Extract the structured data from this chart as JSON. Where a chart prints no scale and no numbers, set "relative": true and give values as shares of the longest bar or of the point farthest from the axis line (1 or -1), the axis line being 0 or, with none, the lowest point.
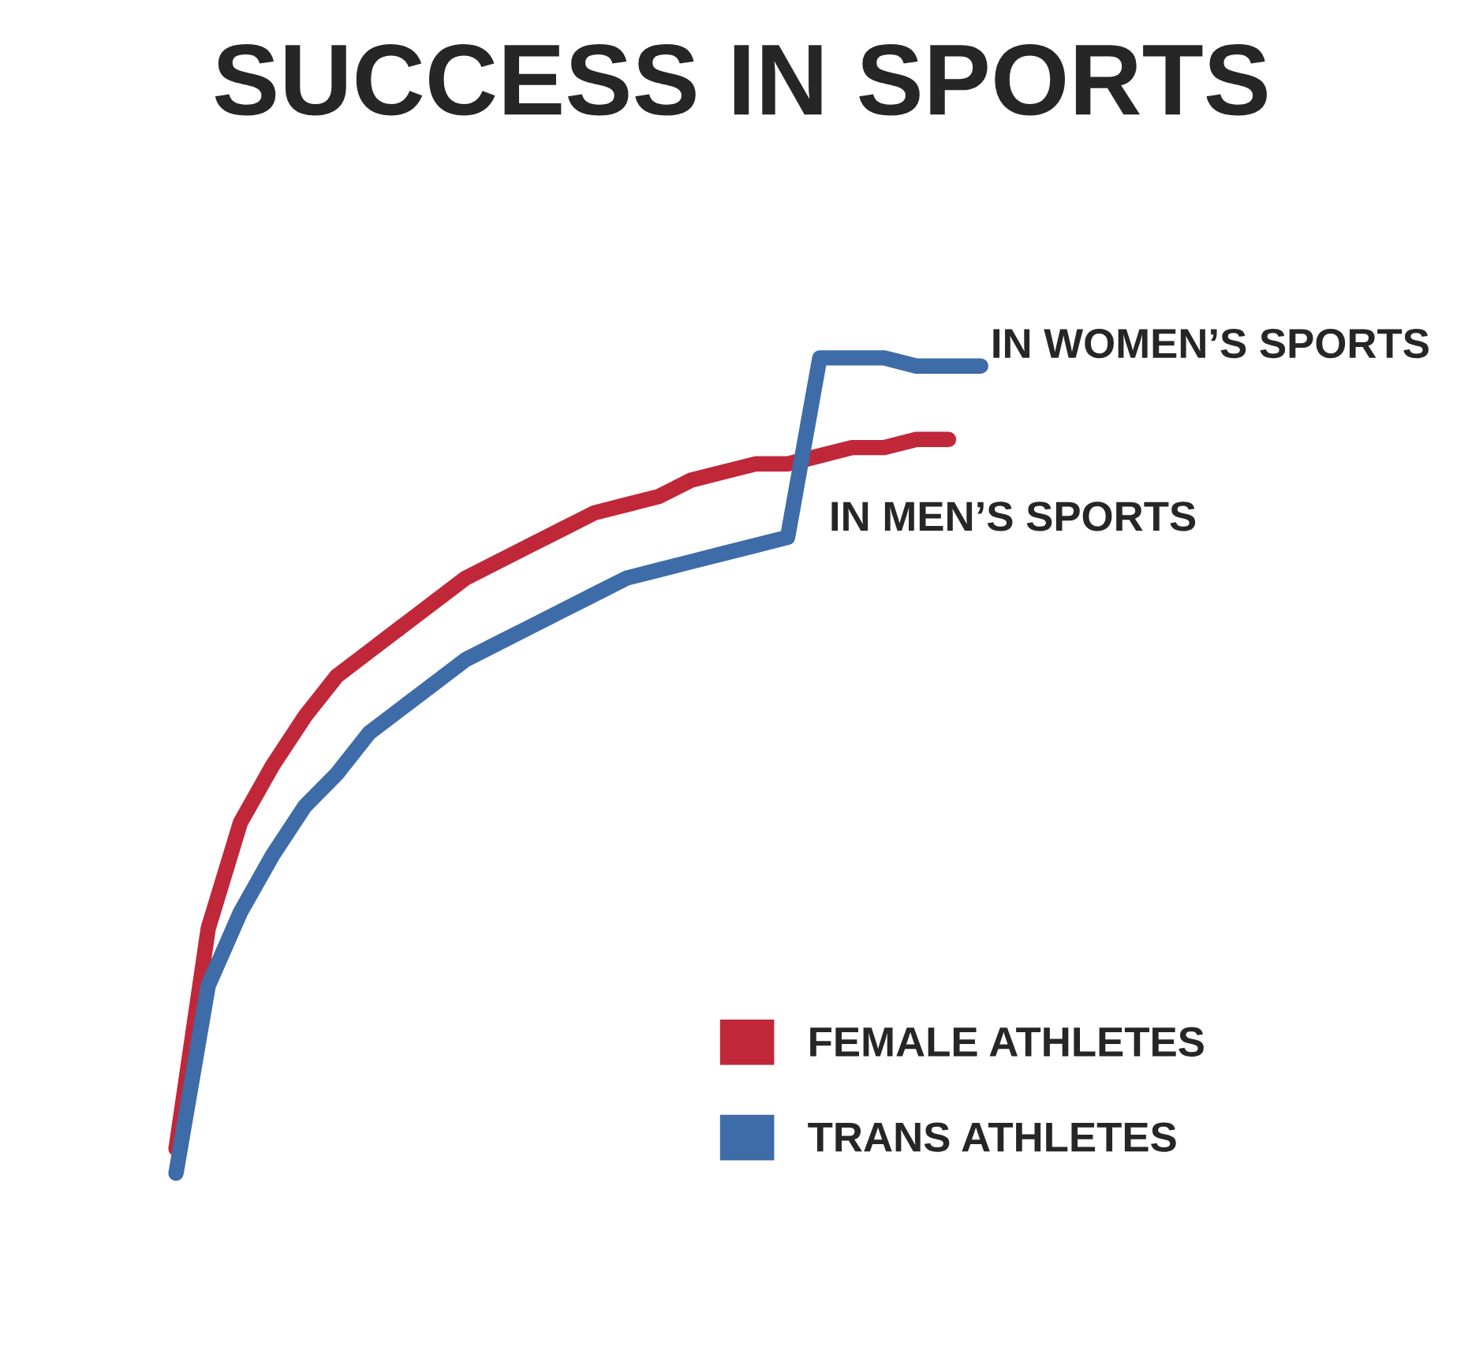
{
  "chart_data": {
    "type": "line",
    "title": "SUCCESS IN SPORTS",
    "relative": true,
    "legend": "bottom right",
    "marker": "none",
    "line_style": "solid",
    "categories": [
      null,
      null,
      null,
      null,
      null,
      null,
      null,
      null,
      null,
      null,
      null,
      null,
      null,
      null,
      null,
      null,
      null,
      null,
      null,
      null,
      null,
      null,
      null,
      null,
      null,
      null
    ],
    "series": [
      {
        "name": "FEMALE ATHLETES",
        "color": "#c0283a",
        "values": [
          0.03,
          0.3,
          0.43,
          0.5,
          0.56,
          0.61,
          0.64,
          0.67,
          0.7,
          0.73,
          0.75,
          0.77,
          0.79,
          0.81,
          0.82,
          0.83,
          0.85,
          0.86,
          0.87,
          0.87,
          0.88,
          0.89,
          0.89,
          0.9,
          0.9,
          null
        ]
      },
      {
        "name": "TRANS ATHLETES",
        "color": "#3d6ca8",
        "values": [
          0.0,
          0.23,
          0.32,
          0.39,
          0.45,
          0.49,
          0.54,
          0.57,
          0.6,
          0.63,
          0.65,
          0.67,
          0.69,
          0.71,
          0.73,
          0.74,
          0.75,
          0.76,
          0.77,
          0.78,
          1.0,
          1.0,
          1.0,
          0.99,
          0.99,
          0.99
        ]
      }
    ],
    "annotations": [
      "IN WOMEN’S SPORTS",
      "IN MEN’S SPORTS"
    ]
  }
}
